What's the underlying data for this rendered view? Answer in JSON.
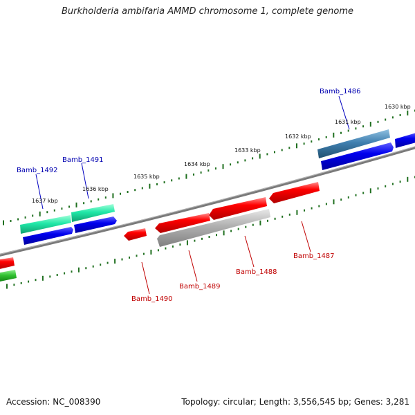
{
  "title": "Burkholderia ambifaria AMMD chromosome 1, complete genome",
  "footer": {
    "accession": "Accession: NC_008390",
    "topology": "Topology: circular; Length: 3,556,545 bp; Genes: 3,281"
  },
  "ticks": [
    "1630 kbp",
    "1631 kbp",
    "1632 kbp",
    "1633 kbp",
    "1634 kbp",
    "1635 kbp",
    "1636 kbp",
    "1637 kbp"
  ],
  "genes": [
    {
      "id": "Bamb_1486",
      "label": "Bamb_1486",
      "strand": "+",
      "color": "#0000b0"
    },
    {
      "id": "Bamb_1487",
      "label": "Bamb_1487",
      "strand": "-",
      "color": "#c00000"
    },
    {
      "id": "Bamb_1488",
      "label": "Bamb_1488",
      "strand": "-",
      "color": "#c00000"
    },
    {
      "id": "Bamb_1489",
      "label": "Bamb_1489",
      "strand": "-",
      "color": "#c00000"
    },
    {
      "id": "Bamb_1490",
      "label": "Bamb_1490",
      "strand": "-",
      "color": "#c00000"
    },
    {
      "id": "Bamb_1491",
      "label": "Bamb_1491",
      "strand": "+",
      "color": "#0000b0"
    },
    {
      "id": "Bamb_1492",
      "label": "Bamb_1492",
      "strand": "+",
      "color": "#0000b0"
    }
  ],
  "colors": {
    "backbone": "#808080",
    "tick": "#207020",
    "forward_cds": "#0000ff",
    "reverse_cds": "#ff0000",
    "forward_feature": "#40a0c0",
    "teal_feature": "#20e0a0",
    "grey_feature": "#a0a0a0",
    "green_feature": "#30c030"
  }
}
